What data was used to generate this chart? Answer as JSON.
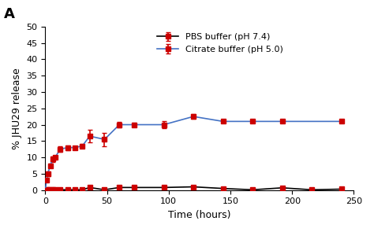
{
  "title_label": "A",
  "xlabel": "Time (hours)",
  "ylabel": "% JHU29 release",
  "xlim": [
    0,
    250
  ],
  "ylim": [
    0,
    50
  ],
  "yticks": [
    0,
    5,
    10,
    15,
    20,
    25,
    30,
    35,
    40,
    45,
    50
  ],
  "xticks": [
    0,
    50,
    100,
    150,
    200,
    250
  ],
  "pbs_color": "#000000",
  "citrate_color": "#4472C4",
  "marker_color": "#CC0000",
  "pbs_x": [
    0,
    1,
    2,
    4,
    6,
    8,
    12,
    18,
    24,
    30,
    36,
    48,
    60,
    72,
    96,
    120,
    144,
    168,
    192,
    216,
    240
  ],
  "pbs_y": [
    0,
    0.2,
    0.15,
    0.1,
    0.1,
    0.1,
    0.1,
    0.1,
    0.1,
    0.1,
    0.8,
    0.1,
    0.8,
    0.8,
    0.8,
    1.0,
    0.5,
    0.1,
    0.7,
    0.1,
    0.3
  ],
  "pbs_yerr": [
    0.0,
    0.1,
    0.1,
    0.05,
    0.05,
    0.05,
    0.05,
    0.05,
    0.05,
    0.05,
    0.2,
    0.05,
    0.2,
    0.2,
    0.2,
    0.3,
    0.1,
    0.05,
    0.2,
    0.05,
    0.1
  ],
  "citrate_x": [
    0,
    1,
    2,
    4,
    6,
    8,
    12,
    18,
    24,
    30,
    36,
    48,
    60,
    72,
    96,
    120,
    144,
    168,
    192,
    240
  ],
  "citrate_y": [
    0,
    3.0,
    5.0,
    7.5,
    9.5,
    10.0,
    12.5,
    13.0,
    13.0,
    13.5,
    16.5,
    15.5,
    20.0,
    20.0,
    20.0,
    22.5,
    21.0,
    21.0,
    21.0,
    21.0
  ],
  "citrate_yerr": [
    0.0,
    0.5,
    0.8,
    0.6,
    0.8,
    0.5,
    0.8,
    0.7,
    0.5,
    0.5,
    2.0,
    2.0,
    0.8,
    0.5,
    1.0,
    0.8,
    0.5,
    0.5,
    0.5,
    0.5
  ],
  "legend_pbs": "PBS buffer (pH 7.4)",
  "legend_citrate": "Citrate buffer (pH 5.0)",
  "bg_color": "#ffffff",
  "fig_width": 4.74,
  "fig_height": 2.95
}
